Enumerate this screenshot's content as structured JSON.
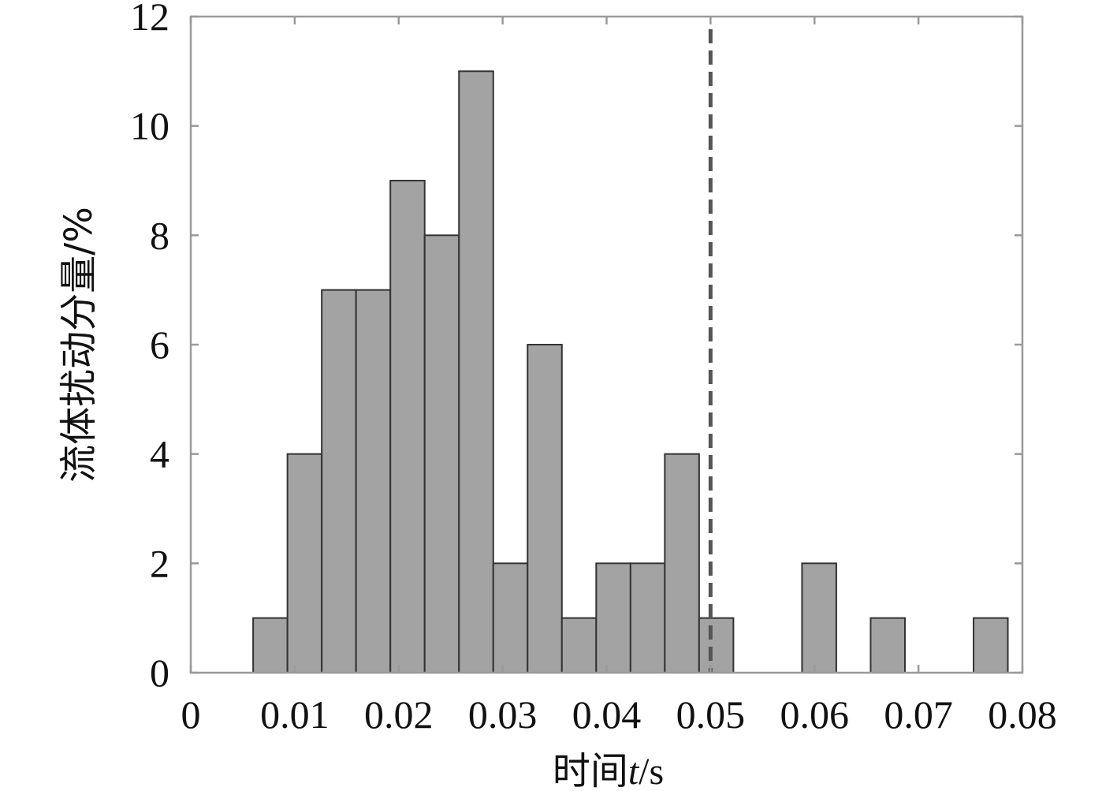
{
  "chart_data": {
    "type": "bar",
    "title": "",
    "xlabel": {
      "prefix": "时间",
      "var": "t",
      "unit": "/s"
    },
    "ylabel": "流体扰动分量/%",
    "xlim": [
      0,
      0.08
    ],
    "ylim": [
      0,
      12
    ],
    "xticks": [
      "0",
      "0.01",
      "0.02",
      "0.03",
      "0.04",
      "0.05",
      "0.06",
      "0.07",
      "0.08"
    ],
    "yticks": [
      "0",
      "2",
      "4",
      "6",
      "8",
      "10",
      "12"
    ],
    "bin_width": 0.0033,
    "bars": [
      {
        "start": 0.006,
        "value": 1
      },
      {
        "start": 0.0093,
        "value": 4
      },
      {
        "start": 0.0126,
        "value": 7
      },
      {
        "start": 0.0159,
        "value": 7
      },
      {
        "start": 0.0192,
        "value": 9
      },
      {
        "start": 0.0225,
        "value": 8
      },
      {
        "start": 0.0258,
        "value": 11
      },
      {
        "start": 0.0291,
        "value": 2
      },
      {
        "start": 0.0324,
        "value": 6
      },
      {
        "start": 0.0357,
        "value": 1
      },
      {
        "start": 0.039,
        "value": 2
      },
      {
        "start": 0.0423,
        "value": 2
      },
      {
        "start": 0.0456,
        "value": 4
      },
      {
        "start": 0.0489,
        "value": 1
      },
      {
        "start": 0.0588,
        "value": 2
      },
      {
        "start": 0.0654,
        "value": 1
      },
      {
        "start": 0.0753,
        "value": 1
      }
    ],
    "reference_line": {
      "x": 0.05,
      "style": "dashed"
    },
    "grid": false,
    "colors": {
      "bar_fill": "#a3a3a3",
      "bar_stroke": "#333333",
      "axis": "#9a9a9a",
      "reference_line": "#555555"
    }
  }
}
